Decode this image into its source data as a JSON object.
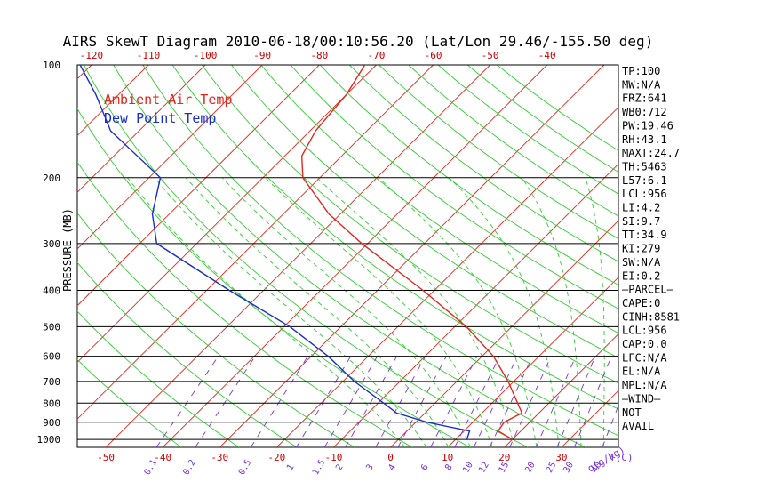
{
  "chart_data": {
    "type": "line",
    "title": "AIRS SkewT Diagram 2010-06-18/00:10:56.20 (Lat/Lon 29.46/-155.50 deg)",
    "ylabel": "PRESSURE (MB)",
    "xlabel": "T(C)",
    "mixing_label": "q(g/kg)",
    "y_scale": "log",
    "ylim": [
      1050,
      100
    ],
    "xlim_bottom": [
      -55,
      40
    ],
    "pressure_ticks": [
      100,
      200,
      300,
      400,
      500,
      600,
      700,
      800,
      900,
      1000
    ],
    "top_temp_ticks": [
      -120,
      -110,
      -100,
      -90,
      -80,
      -70,
      -60,
      -50,
      -40
    ],
    "bottom_temp_ticks": [
      -50,
      -40,
      -30,
      -20,
      -10,
      0,
      10,
      20,
      30
    ],
    "mixing_ratio_labels": [
      "0.1",
      "0.2",
      "0.5",
      "1",
      "1.5",
      "2",
      "3",
      "4",
      "6",
      "8",
      "10",
      "12",
      "15",
      "20",
      "25",
      "30",
      "40"
    ],
    "mixing_ratio_values": [
      0.1,
      0.2,
      0.5,
      1,
      1.5,
      2,
      3,
      4,
      6,
      8,
      10,
      12,
      15,
      20,
      25,
      30,
      40
    ],
    "legend": [
      {
        "name": "Ambient Air Temp",
        "color": "#e0281e"
      },
      {
        "name": "Dew Point Temp",
        "color": "#1a2fc8"
      }
    ],
    "series": [
      {
        "name": "Ambient Air Temp",
        "color": "#e0281e",
        "points": [
          {
            "p": 1000,
            "t": 20
          },
          {
            "p": 950,
            "t": 16
          },
          {
            "p": 900,
            "t": 15.5
          },
          {
            "p": 850,
            "t": 17
          },
          {
            "p": 800,
            "t": 14.5
          },
          {
            "p": 700,
            "t": 9
          },
          {
            "p": 600,
            "t": 2
          },
          {
            "p": 500,
            "t": -8
          },
          {
            "p": 400,
            "t": -22
          },
          {
            "p": 300,
            "t": -41
          },
          {
            "p": 250,
            "t": -52
          },
          {
            "p": 200,
            "t": -63
          },
          {
            "p": 175,
            "t": -67
          },
          {
            "p": 150,
            "t": -69
          },
          {
            "p": 120,
            "t": -70
          },
          {
            "p": 100,
            "t": -72
          }
        ]
      },
      {
        "name": "Dew Point Temp",
        "color": "#1a2fc8",
        "points": [
          {
            "p": 1000,
            "t": 12
          },
          {
            "p": 950,
            "t": 11
          },
          {
            "p": 900,
            "t": 2
          },
          {
            "p": 850,
            "t": -5
          },
          {
            "p": 800,
            "t": -9
          },
          {
            "p": 700,
            "t": -18
          },
          {
            "p": 600,
            "t": -27
          },
          {
            "p": 500,
            "t": -39
          },
          {
            "p": 400,
            "t": -56
          },
          {
            "p": 300,
            "t": -77
          },
          {
            "p": 250,
            "t": -83
          },
          {
            "p": 200,
            "t": -88
          },
          {
            "p": 150,
            "t": -105
          },
          {
            "p": 120,
            "t": -114
          },
          {
            "p": 100,
            "t": -122
          }
        ]
      }
    ]
  },
  "sidebar": {
    "items": [
      "TP:100",
      "MW:N/A",
      "FRZ:641",
      "WB0:712",
      "PW:19.46",
      "RH:43.1",
      "MAXT:24.7",
      "TH:5463",
      "L57:6.1",
      "LCL:956",
      "LI:4.2",
      "SI:9.7",
      "TT:34.9",
      "KI:279",
      "SW:N/A",
      "EI:0.2",
      "—PARCEL—",
      "CAPE:0",
      "CINH:8581",
      "LCL:956",
      "CAP:0.0",
      "LFC:N/A",
      "EL:N/A",
      "MPL:N/A",
      "—WIND—",
      "NOT",
      "AVAIL"
    ]
  },
  "colors": {
    "isotherm": "#e0281e",
    "dry_adiabat": "#33cc33",
    "moist_adiabat": "#33cc33",
    "mixing_ratio": "#7733dd",
    "grid": "#000000",
    "text": "#000000",
    "axis_temp": "#cc0000",
    "axis_mixing": "#7733dd"
  }
}
